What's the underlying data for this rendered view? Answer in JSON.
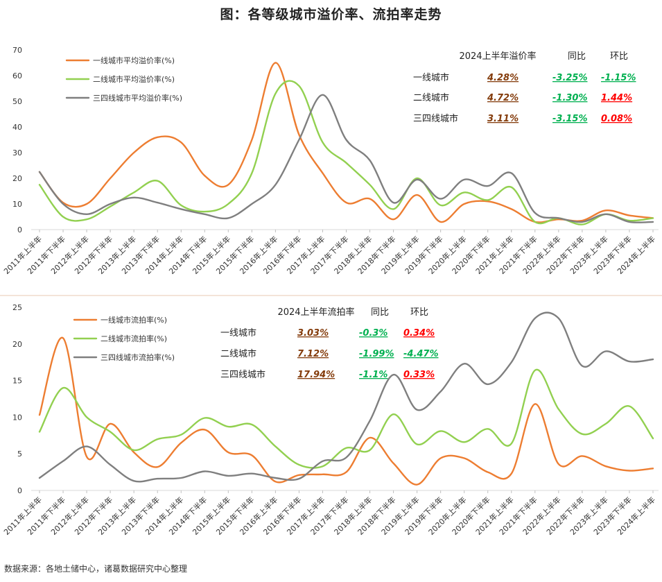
{
  "page": {
    "title": "图：各等级城市溢价率、流拍率走势",
    "source": "数据来源：各地土储中心，诸葛数据研究中心整理"
  },
  "colors": {
    "tier1": "#ED7D31",
    "tier2": "#92D050",
    "tier34": "#7F7F7F",
    "neg": "#00B050",
    "pos": "#FF0000",
    "val": "#843C0C"
  },
  "chart_data": [
    {
      "type": "line",
      "categories": [
        "2011年上半年",
        "2011年下半年",
        "2012年上半年",
        "2012年下半年",
        "2013年上半年",
        "2013年下半年",
        "2014年上半年",
        "2014年下半年",
        "2015年上半年",
        "2015年下半年",
        "2016年上半年",
        "2016年下半年",
        "2017年上半年",
        "2017年下半年",
        "2018年上半年",
        "2018年下半年",
        "2019年上半年",
        "2019年下半年",
        "2020年上半年",
        "2020年下半年",
        "2021年上半年",
        "2021年下半年",
        "2022年上半年",
        "2022年下半年",
        "2023年上半年",
        "2023年下半年",
        "2024年上半年"
      ],
      "ylim": [
        0,
        70
      ],
      "yticks": [
        0,
        10,
        20,
        30,
        40,
        50,
        60,
        70
      ],
      "series": [
        {
          "name": "一线城市平均溢价率(%)",
          "values": [
            22.5,
            10.5,
            10,
            20,
            30,
            36,
            34,
            21,
            17.5,
            35,
            65,
            37,
            22,
            10.5,
            12,
            4,
            13.5,
            3,
            10,
            11,
            8,
            3,
            4,
            3.5,
            7.5,
            5.5,
            4.5
          ]
        },
        {
          "name": "二线城市平均溢价率(%)",
          "values": [
            17.5,
            5,
            4,
            9,
            14.5,
            19,
            9.5,
            7,
            10,
            22,
            53,
            56,
            34,
            26,
            17.5,
            8,
            20,
            9.5,
            14.5,
            11.5,
            16.5,
            3,
            4.5,
            2,
            6,
            3.5,
            4.5
          ]
        },
        {
          "name": "三四线城市平均溢价率(%)",
          "values": [
            22.5,
            10,
            6,
            10,
            12.5,
            10.5,
            8,
            6,
            4.5,
            10,
            17.5,
            35,
            52.5,
            35,
            27,
            10.5,
            19.5,
            12,
            19.5,
            17,
            22,
            6.5,
            4.5,
            3,
            6,
            3,
            3
          ]
        }
      ],
      "table": {
        "headers": [
          "2024上半年溢价率",
          "同比",
          "环比"
        ],
        "rows": [
          {
            "name": "一线城市",
            "value": "4.28%",
            "yoy": "-3.25%",
            "mom": "-1.15%",
            "yoy_color": "#00B050",
            "mom_color": "#00B050"
          },
          {
            "name": "二线城市",
            "value": "4.72%",
            "yoy": "-1.30%",
            "mom": "1.44%",
            "yoy_color": "#00B050",
            "mom_color": "#FF0000"
          },
          {
            "name": "三四线城市",
            "value": "3.11%",
            "yoy": "-3.15%",
            "mom": "0.08%",
            "yoy_color": "#00B050",
            "mom_color": "#FF0000"
          }
        ]
      }
    },
    {
      "type": "line",
      "categories": [
        "2011年上半年",
        "2011年下半年",
        "2012年上半年",
        "2012年下半年",
        "2013年上半年",
        "2013年下半年",
        "2014年上半年",
        "2014年下半年",
        "2015年上半年",
        "2015年下半年",
        "2016年上半年",
        "2016年下半年",
        "2017年上半年",
        "2017年下半年",
        "2018年上半年",
        "2018年下半年",
        "2019年上半年",
        "2019年下半年",
        "2020年上半年",
        "2020年下半年",
        "2021年上半年",
        "2021年下半年",
        "2022年上半年",
        "2022年下半年",
        "2023年上半年",
        "2023年下半年",
        "2024年上半年"
      ],
      "ylim": [
        0,
        25
      ],
      "yticks": [
        0,
        5,
        10,
        15,
        20,
        25
      ],
      "series": [
        {
          "name": "一线城市流拍率(%)",
          "values": [
            10.3,
            20.8,
            4.6,
            9.1,
            5.2,
            3.2,
            6.5,
            8.3,
            5.2,
            4.8,
            1.2,
            2.1,
            2.2,
            2.5,
            7.2,
            3.7,
            0.8,
            4.4,
            4.4,
            2.5,
            2.3,
            11.8,
            3.6,
            4.7,
            3.3,
            2.7,
            3.0
          ]
        },
        {
          "name": "二线城市流拍率(%)",
          "values": [
            8.0,
            14.0,
            10.0,
            8.0,
            5.5,
            7.0,
            7.6,
            9.9,
            8.7,
            9.0,
            6.0,
            3.5,
            3.3,
            5.8,
            5.5,
            10.4,
            6.3,
            8.1,
            6.6,
            8.4,
            6.4,
            16.4,
            11.1,
            7.7,
            9.1,
            11.5,
            7.1
          ]
        },
        {
          "name": "三四线城市流拍率(%)",
          "values": [
            1.7,
            4.0,
            6.0,
            3.5,
            1.3,
            1.6,
            1.7,
            2.6,
            2.0,
            2.3,
            1.7,
            1.6,
            4.0,
            4.5,
            9.5,
            15.8,
            11.0,
            13.5,
            17.3,
            14.5,
            17.5,
            23.5,
            23.5,
            17.0,
            19.0,
            17.6,
            17.9
          ]
        }
      ],
      "table": {
        "headers": [
          "2024上半年流拍率",
          "同比",
          "环比"
        ],
        "rows": [
          {
            "name": "一线城市",
            "value": "3.03%",
            "yoy": "-0.3%",
            "mom": "0.34%",
            "yoy_color": "#00B050",
            "mom_color": "#FF0000"
          },
          {
            "name": "二线城市",
            "value": "7.12%",
            "yoy": "-1.99%",
            "mom": "-4.47%",
            "yoy_color": "#00B050",
            "mom_color": "#00B050"
          },
          {
            "name": "三四线城市",
            "value": "17.94%",
            "yoy": "-1.1%",
            "mom": "0.33%",
            "yoy_color": "#00B050",
            "mom_color": "#FF0000"
          }
        ]
      }
    }
  ]
}
